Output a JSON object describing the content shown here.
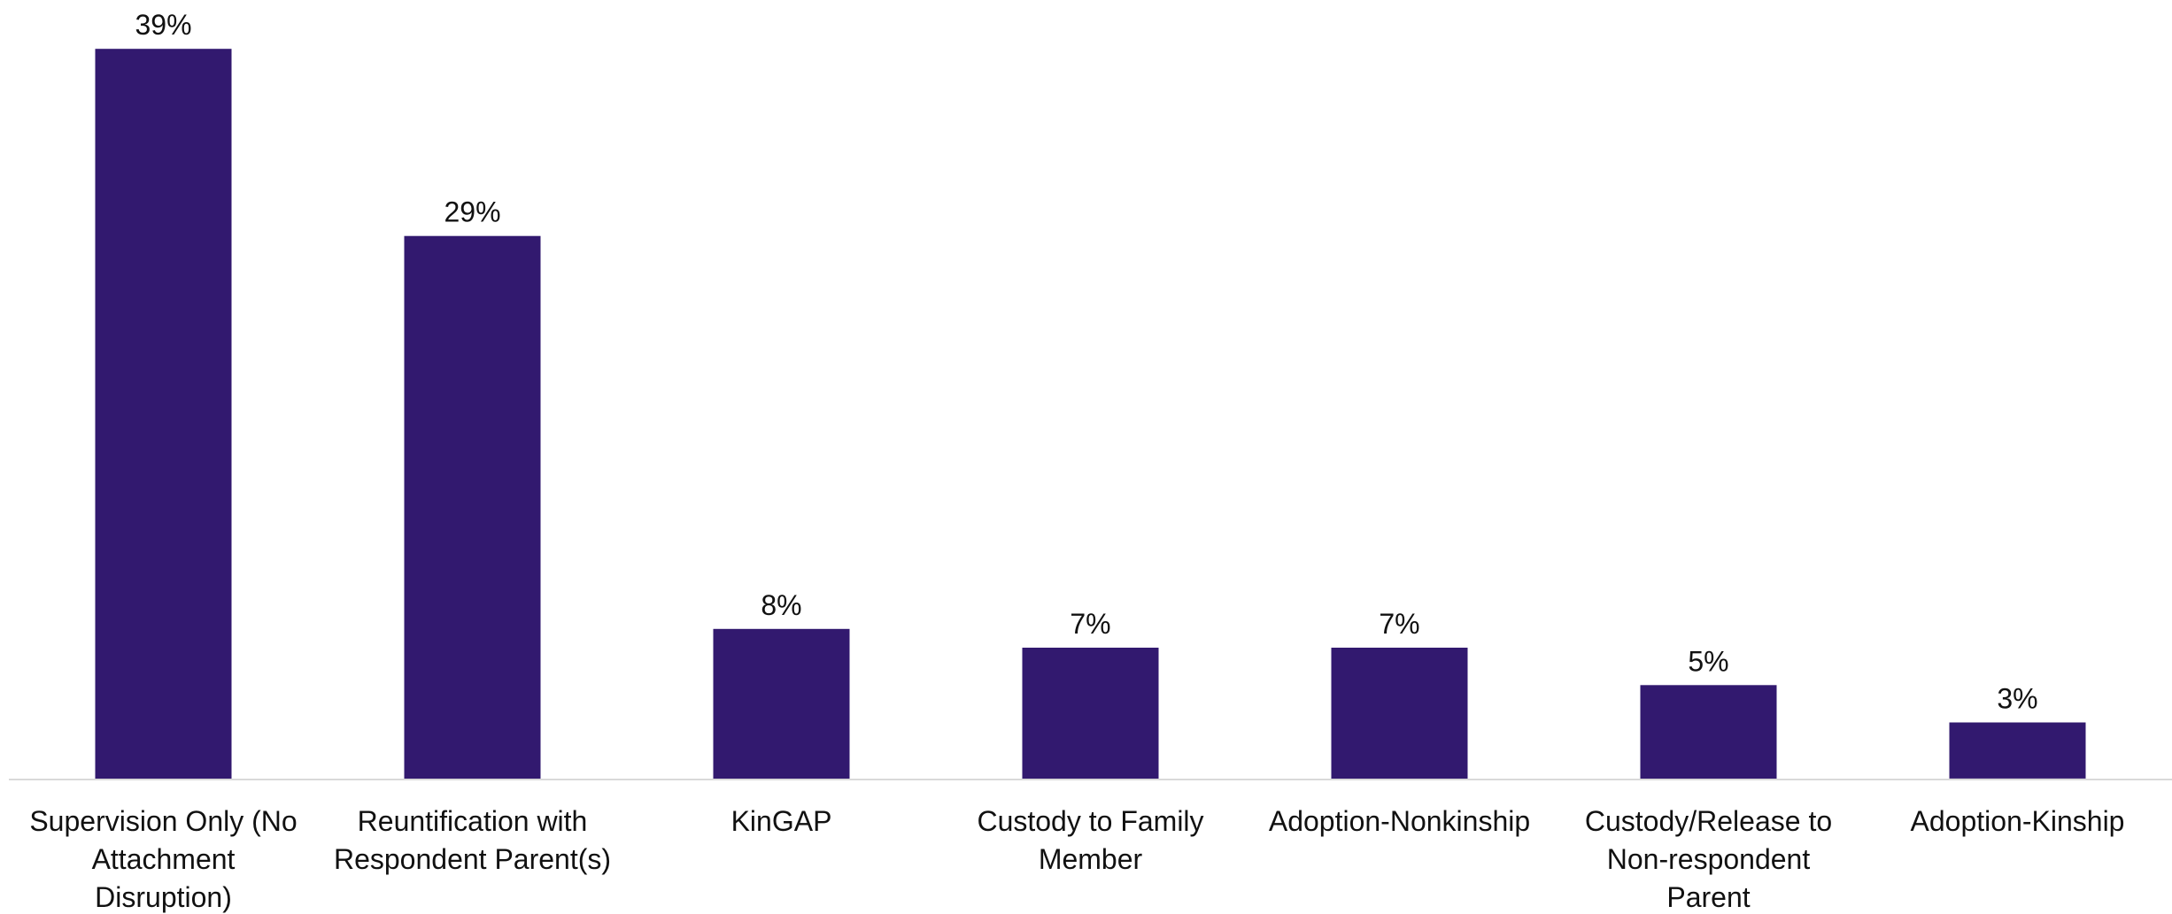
{
  "chart_data": {
    "type": "bar",
    "title": "",
    "xlabel": "",
    "ylabel": "",
    "categories": [
      "Supervision Only (No Attachment Disruption)",
      "Reuntification with Respondent Parent(s)",
      "KinGAP",
      "Custody to Family Member",
      "Adoption-Nonkinship",
      "Custody/Release to Non-respondent Parent",
      "Adoption-Kinship"
    ],
    "category_lines": [
      [
        "Supervision Only (No",
        "Attachment",
        "Disruption)"
      ],
      [
        "Reuntification with",
        "Respondent Parent(s)"
      ],
      [
        "KinGAP"
      ],
      [
        "Custody to Family",
        "Member"
      ],
      [
        "Adoption-Nonkinship"
      ],
      [
        "Custody/Release to",
        "Non-respondent",
        "Parent"
      ],
      [
        "Adoption-Kinship"
      ]
    ],
    "values": [
      39,
      29,
      8,
      7,
      7,
      5,
      3
    ],
    "data_labels": [
      "39%",
      "29%",
      "8%",
      "7%",
      "7%",
      "5%",
      "3%"
    ],
    "unit": "%",
    "ylim": [
      0,
      40
    ],
    "grid": false,
    "legend": "none",
    "bar_color": "#32196f"
  }
}
